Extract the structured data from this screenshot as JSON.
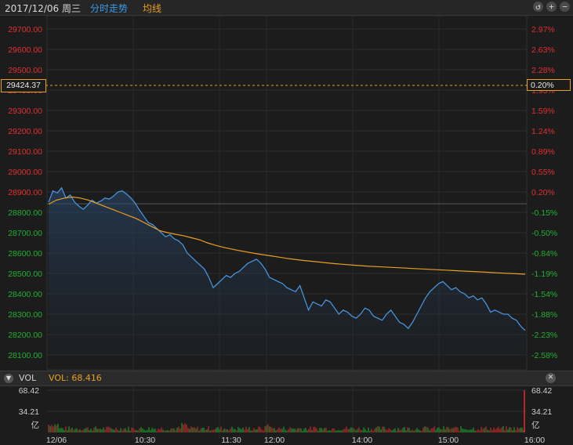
{
  "header": {
    "date": "2017/12/06 周三",
    "tab_intraday": "分时走势",
    "tab_avg": "均线",
    "icons": [
      "back-icon",
      "zoom-in-icon",
      "zoom-out-icon"
    ]
  },
  "colors": {
    "up": "#e03030",
    "down": "#20b030",
    "price_line": "#4a9ae8",
    "avg_line": "#e8a020",
    "grid": "#2e2e2e"
  },
  "crosshair": {
    "price": "29424.37",
    "pct": "0.20%"
  },
  "volume_panel": {
    "label": "VOL",
    "value_label": "VOL: 68.416",
    "left_ticks": [
      "68.42",
      "34.21",
      "亿"
    ],
    "right_ticks": [
      "68.42",
      "34.21",
      "亿"
    ]
  },
  "chart_data": {
    "type": "line",
    "y_ticks_left": [
      "29700.00",
      "29600.00",
      "29500.00",
      "29400.00",
      "29300.00",
      "29200.00",
      "29100.00",
      "29000.00",
      "28900.00",
      "28800.00",
      "28700.00",
      "28600.00",
      "28500.00",
      "28400.00",
      "28300.00",
      "28200.00",
      "28100.00"
    ],
    "y_ticks_right": [
      "2.97%",
      "2.63%",
      "2.28%",
      "1.93%",
      "1.59%",
      "1.24%",
      "0.89%",
      "0.55%",
      "0.20%",
      "-0.15%",
      "-0.50%",
      "-0.84%",
      "-1.19%",
      "-1.54%",
      "-1.88%",
      "-2.23%",
      "-2.58%"
    ],
    "x_ticks": [
      "12/06",
      "10:30",
      "11:30",
      "12:00",
      "14:00",
      "15:00",
      "16:00"
    ],
    "ylim": [
      28100,
      29700
    ],
    "prev_close": 28842,
    "price": [
      28850,
      28905,
      28895,
      28920,
      28870,
      28885,
      28850,
      28830,
      28815,
      28835,
      28860,
      28845,
      28855,
      28870,
      28865,
      28880,
      28900,
      28905,
      28890,
      28870,
      28845,
      28810,
      28780,
      28750,
      28740,
      28720,
      28700,
      28680,
      28690,
      28670,
      28660,
      28640,
      28600,
      28580,
      28560,
      28540,
      28520,
      28480,
      28430,
      28450,
      28470,
      28490,
      28480,
      28500,
      28510,
      28530,
      28550,
      28560,
      28570,
      28550,
      28520,
      28480,
      28470,
      28460,
      28450,
      28430,
      28420,
      28410,
      28440,
      28380,
      28320,
      28360,
      28350,
      28340,
      28370,
      28360,
      28330,
      28300,
      28320,
      28310,
      28290,
      28280,
      28300,
      28330,
      28320,
      28290,
      28280,
      28270,
      28300,
      28320,
      28290,
      28260,
      28250,
      28230,
      28260,
      28300,
      28340,
      28380,
      28410,
      28430,
      28450,
      28460,
      28440,
      28420,
      28430,
      28410,
      28400,
      28380,
      28390,
      28370,
      28380,
      28350,
      28310,
      28320,
      28310,
      28300,
      28300,
      28280,
      28270,
      28240,
      28220
    ],
    "avg": [
      28840,
      28860,
      28870,
      28875,
      28870,
      28860,
      28845,
      28830,
      28815,
      28800,
      28785,
      28770,
      28750,
      28730,
      28710,
      28700,
      28692,
      28685,
      28675,
      28665,
      28650,
      28638,
      28628,
      28620,
      28612,
      28605,
      28598,
      28592,
      28586,
      28580,
      28574,
      28569,
      28564,
      28560,
      28556,
      28552,
      28548,
      28545,
      28542,
      28539,
      28536,
      28534,
      28532,
      28530,
      28528,
      28526,
      28524,
      28522,
      28520,
      28518,
      28516,
      28514,
      28512,
      28510,
      28508,
      28506,
      28504,
      28502,
      28500,
      28498,
      28496
    ],
    "volume_max": 68.42,
    "volume_last": 68.416
  }
}
